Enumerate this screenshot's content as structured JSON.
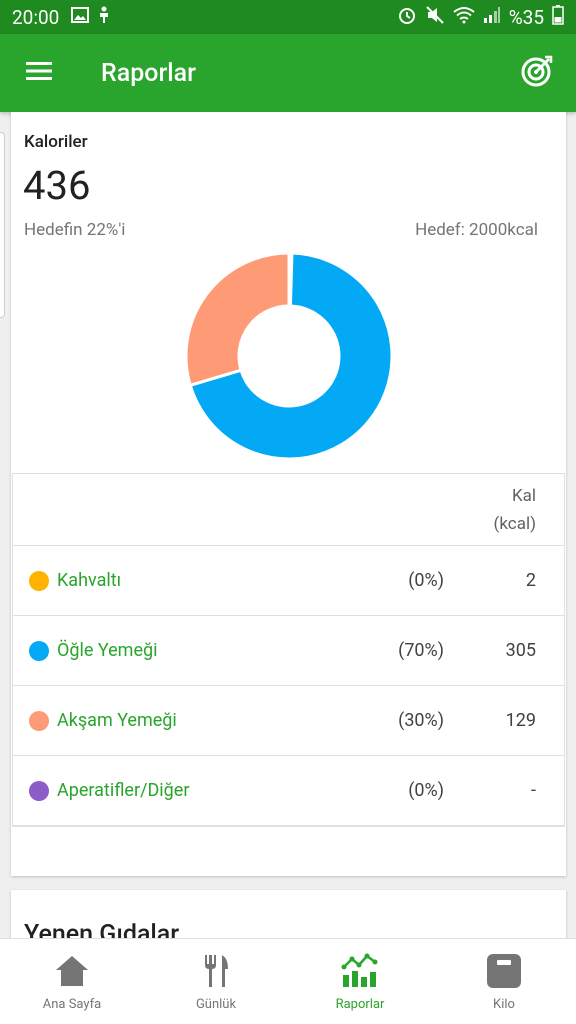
{
  "status_bar": {
    "time": "20:00",
    "battery": "%35"
  },
  "app_bar": {
    "title": "Raporlar"
  },
  "calories": {
    "label": "Kaloriler",
    "value": "436",
    "goal_percent_text": "Hedefin 22%'i",
    "goal_text": "Hedef: 2000kcal",
    "donut": [
      {
        "name": "Kahvaltı",
        "value": 2,
        "color": "#ffb300"
      },
      {
        "name": "Öğle Yemeği",
        "value": 305,
        "color": "#03a9f4"
      },
      {
        "name": "Akşam Yemeği",
        "value": 129,
        "color": "#ff9a76"
      },
      {
        "name": "Aperatifler/Diğer",
        "value": 0,
        "color": "#8e5cc7"
      }
    ]
  },
  "table": {
    "col_kal_line1": "Kal",
    "col_kal_line2": "(kcal)",
    "rows": [
      {
        "name": "Kahvaltı",
        "pct": "(0%)",
        "kal": "2",
        "color": "#ffb300"
      },
      {
        "name": "Öğle Yemeği",
        "pct": "(70%)",
        "kal": "305",
        "color": "#03a9f4"
      },
      {
        "name": "Akşam Yemeği",
        "pct": "(30%)",
        "kal": "129",
        "color": "#ff9a76"
      },
      {
        "name": "Aperatifler/Diğer",
        "pct": "(0%)",
        "kal": "-",
        "color": "#8e5cc7"
      }
    ]
  },
  "foods": {
    "title": "Yenen Gıdalar"
  },
  "bottom_nav": [
    {
      "label": "Ana Sayfa",
      "active": false
    },
    {
      "label": "Günlük",
      "active": false
    },
    {
      "label": "Raporlar",
      "active": true
    },
    {
      "label": "Kilo",
      "active": false
    }
  ],
  "colors": {
    "primary": "#29a52d",
    "status_bar": "#1f8a1f"
  }
}
